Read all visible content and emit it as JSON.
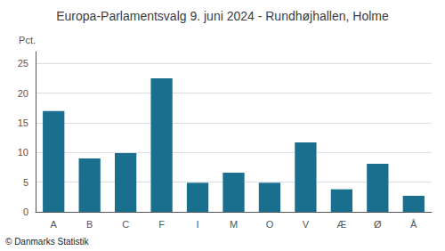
{
  "chart_data": {
    "type": "bar",
    "title": "Europa-Parlamentsvalg 9. juni 2024 - Rundhøjhallen, Holme",
    "ylabel": "Pct.",
    "footer": "© Danmarks Statistik",
    "categories": [
      "A",
      "B",
      "C",
      "F",
      "I",
      "M",
      "O",
      "V",
      "Æ",
      "Ø",
      "Å"
    ],
    "values": [
      17.0,
      9.0,
      9.9,
      22.5,
      4.9,
      6.6,
      4.9,
      11.7,
      3.8,
      8.1,
      2.7
    ],
    "color": "#1a6e8e",
    "ylim": [
      0,
      27
    ],
    "yticks": [
      0,
      5,
      10,
      15,
      20,
      25
    ],
    "grid": true
  }
}
